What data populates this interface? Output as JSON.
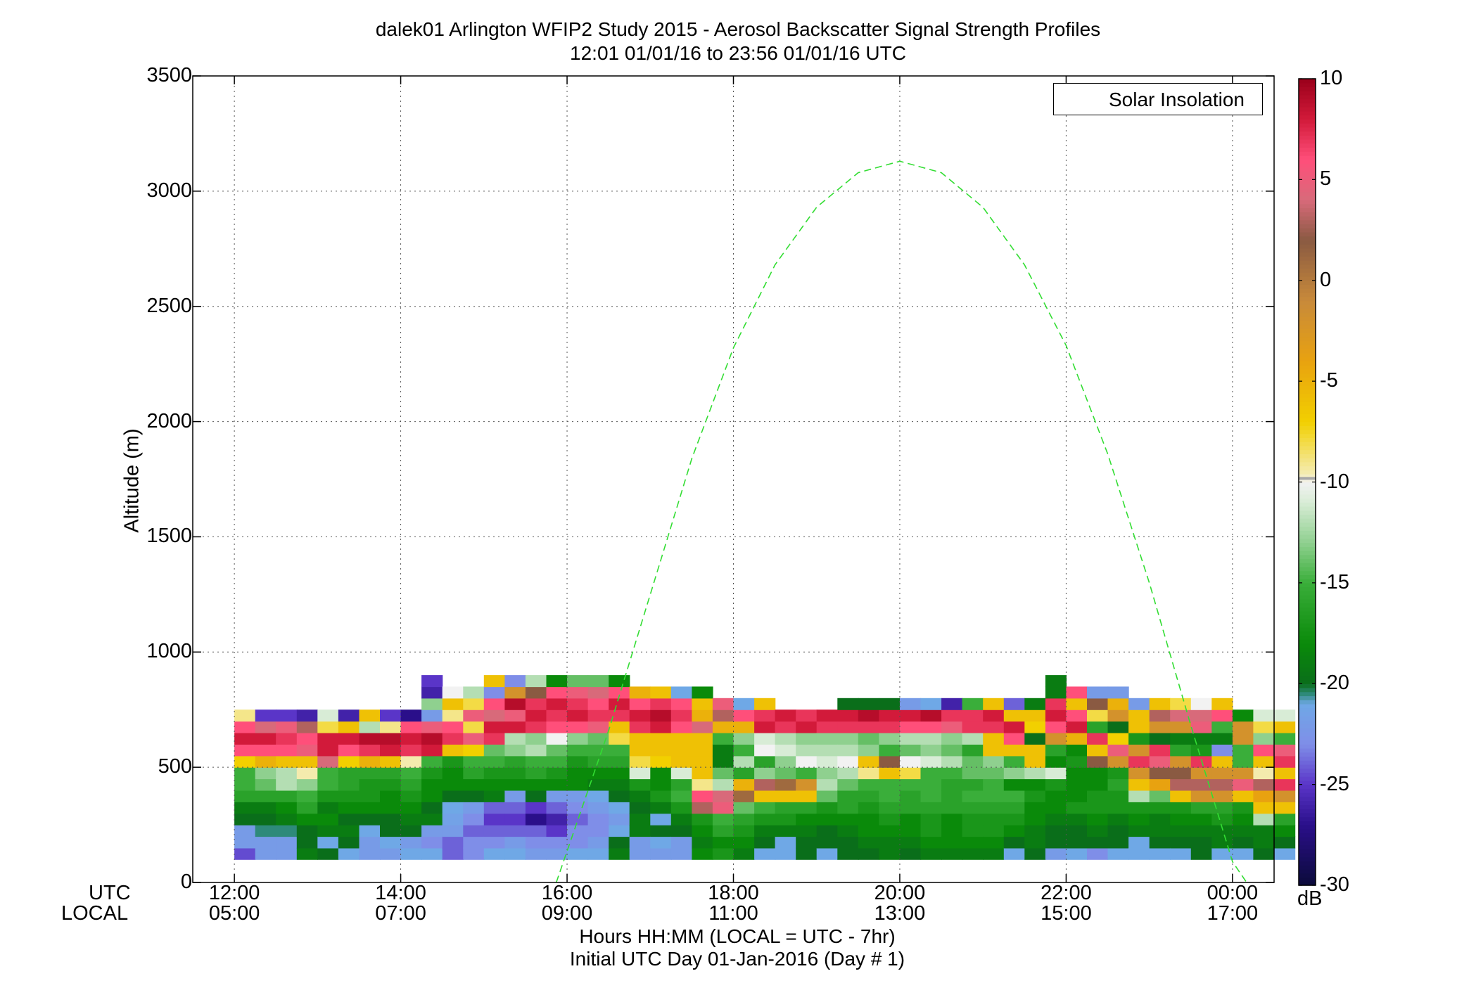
{
  "figure": {
    "title_line1": "dalek01 Arlington WFIP2 Study 2015 - Aerosol Backscatter Signal Strength Profiles",
    "title_line2": "12:01 01/01/16 to 23:56 01/01/16  UTC",
    "ylabel": "Altitude (m)",
    "xlabel_line1": "Hours HH:MM  (LOCAL = UTC - 7hr)",
    "xlabel_line2": "Initial UTC Day 01-Jan-2016 (Day # 1)",
    "row_label_utc": "UTC",
    "row_label_local": "LOCAL",
    "legend_label": "Solar Insolation",
    "colorbar_unit": "dB"
  },
  "chart_data": {
    "type": "heatmap",
    "x_unit": "hours UTC",
    "xlim": [
      11.5,
      24.5
    ],
    "ylim": [
      0,
      3500
    ],
    "grid": true,
    "legend_position": "top-right",
    "x_ticks_utc": [
      "12:00",
      "14:00",
      "16:00",
      "18:00",
      "20:00",
      "22:00",
      "00:00"
    ],
    "x_ticks_local": [
      "05:00",
      "07:00",
      "09:00",
      "11:00",
      "13:00",
      "15:00",
      "17:00"
    ],
    "x_tick_values": [
      12,
      14,
      16,
      18,
      20,
      22,
      24
    ],
    "y_ticks": [
      "0",
      "500",
      "1000",
      "1500",
      "2000",
      "2500",
      "3000",
      "3500"
    ],
    "y_tick_values": [
      0,
      500,
      1000,
      1500,
      2000,
      2500,
      3000,
      3500
    ],
    "colorbar": {
      "range": [
        -30,
        10
      ],
      "ticks": [
        "10",
        "5",
        "0",
        "-5",
        "-10",
        "-15",
        "-20",
        "-25",
        "-30"
      ],
      "tick_values": [
        10,
        5,
        0,
        -5,
        -10,
        -15,
        -20,
        -25,
        -30
      ],
      "colormap": [
        {
          "v": -30,
          "c": "#0b0b3a"
        },
        {
          "v": -27,
          "c": "#2a0f8a"
        },
        {
          "v": -25,
          "c": "#5a35c8"
        },
        {
          "v": -23,
          "c": "#7f8ee8"
        },
        {
          "v": -21,
          "c": "#6fa8e6"
        },
        {
          "v": -20.5,
          "c": "#2e8a7a"
        },
        {
          "v": -20,
          "c": "#0a6e1a"
        },
        {
          "v": -18,
          "c": "#0a8a0a"
        },
        {
          "v": -15,
          "c": "#3aae3a"
        },
        {
          "v": -13,
          "c": "#8fd08f"
        },
        {
          "v": -11,
          "c": "#d8ecd6"
        },
        {
          "v": -10,
          "c": "#f2f2f2"
        },
        {
          "v": -9.6,
          "c": "#f4ecb4"
        },
        {
          "v": -7,
          "c": "#f2d000"
        },
        {
          "v": -4,
          "c": "#e8a210"
        },
        {
          "v": -1,
          "c": "#c88a3a"
        },
        {
          "v": 2,
          "c": "#8a5a42"
        },
        {
          "v": 4,
          "c": "#d86a7a"
        },
        {
          "v": 6,
          "c": "#ff4f7a"
        },
        {
          "v": 8,
          "c": "#d21a3a"
        },
        {
          "v": 10,
          "c": "#9a001a"
        }
      ]
    },
    "heatmap": {
      "x_start": 12.0,
      "x_step": 0.25,
      "y_start": 100,
      "y_step": 50,
      "value_unit": "dB",
      "columns_dB_bottom_to_top": [
        [
          -24.5,
          -22.0,
          -22.0,
          -20.0,
          -19.0,
          -16.0,
          -15.0,
          -15.0,
          -7.0,
          6.0,
          8.0,
          6.0,
          -9.0
        ],
        [
          -22.0,
          -22.0,
          -20.5,
          -20.0,
          -19.0,
          -16.0,
          -14.0,
          -13.0,
          -5.0,
          6.0,
          8.0,
          4.0,
          -25.0
        ],
        [
          -22.0,
          -22.0,
          -20.5,
          -19.0,
          -18.0,
          -16.0,
          -12.0,
          -12.0,
          -6.0,
          6.0,
          7.0,
          5.0,
          -25.0
        ],
        [
          -19.0,
          -20.0,
          -20.0,
          -18.0,
          -16.0,
          -15.0,
          -13.0,
          -9.5,
          -6.0,
          5.0,
          6.0,
          3.0,
          -26.0
        ],
        [
          -20.0,
          -21.0,
          -19.0,
          -18.0,
          -19.0,
          -17.0,
          -15.0,
          -15.0,
          4.0,
          8.0,
          8.0,
          -8.0,
          -11.0
        ],
        [
          -21.0,
          -20.0,
          -19.0,
          -20.0,
          -18.0,
          -17.0,
          -16.0,
          -16.0,
          -7.0,
          6.0,
          8.0,
          -6.0,
          -26.0
        ],
        [
          -22.0,
          -22.0,
          -21.0,
          -20.0,
          -18.0,
          -17.0,
          -17.0,
          -16.0,
          -5.0,
          7.0,
          9.0,
          -12.0,
          -6.0
        ],
        [
          -22.0,
          -21.0,
          -20.0,
          -20.0,
          -18.0,
          -18.0,
          -17.0,
          -16.0,
          -6.0,
          8.0,
          9.0,
          -9.0,
          -25.0
        ],
        [
          -21.0,
          -22.0,
          -20.0,
          -19.0,
          -18.0,
          -17.0,
          -16.0,
          -15.0,
          -9.5,
          7.0,
          8.0,
          6.0,
          -27.0
        ],
        [
          -21.0,
          -23.0,
          -22.0,
          -19.0,
          -20.0,
          -18.0,
          -18.0,
          -17.0,
          -15.0,
          8.0,
          9.0,
          5.0,
          -22.0,
          -13.0,
          -26.0,
          -25.0
        ],
        [
          -24.0,
          -24.0,
          -22.0,
          -21.5,
          -21.0,
          -20.0,
          -18.0,
          -18.0,
          -17.0,
          -6.0,
          7.0,
          6.0,
          -9.0,
          -6.0,
          -10.0
        ],
        [
          -23.0,
          -23.0,
          -24.0,
          -23.0,
          -22.0,
          -20.0,
          -18.0,
          -16.0,
          -15.0,
          -7.0,
          5.0,
          -8.0,
          5.0,
          -8.0,
          -12.0
        ],
        [
          -21.0,
          -23.0,
          -24.0,
          -25.0,
          -24.0,
          -19.0,
          -18.0,
          -17.0,
          -15.0,
          -14.0,
          7.0,
          8.0,
          4.0,
          6.0,
          -23.0,
          -6.0
        ],
        [
          -21.0,
          -22.0,
          -24.0,
          -25.0,
          -24.0,
          -22.0,
          -18.0,
          -17.0,
          -16.0,
          -13.0,
          -12.0,
          8.0,
          5.0,
          9.0,
          -2.0,
          -23.0
        ],
        [
          -22.0,
          -23.0,
          -24.0,
          -27.0,
          -25.0,
          -20.0,
          -18.0,
          -16.0,
          -15.0,
          -12.0,
          -13.0,
          7.0,
          8.0,
          7.0,
          2.0,
          -12.0
        ],
        [
          -22.0,
          -23.0,
          -25.0,
          -26.0,
          -24.0,
          -22.0,
          -18.0,
          -17.0,
          -15.0,
          -14.0,
          -10.0,
          6.0,
          7.0,
          8.0,
          6.0,
          -18.0
        ],
        [
          -21.0,
          -23.0,
          -23.0,
          -24.0,
          -23.0,
          -22.0,
          -18.0,
          -18.0,
          -17.0,
          -15.0,
          -13.0,
          6.0,
          8.0,
          7.0,
          5.0,
          -14.0
        ],
        [
          -21.0,
          -22.0,
          -23.0,
          -23.0,
          -22.0,
          -21.0,
          -19.0,
          -18.0,
          -16.0,
          -15.0,
          -14.0,
          5.0,
          7.0,
          6.0,
          4.0,
          -14.0
        ],
        [
          -19.0,
          -20.0,
          -21.0,
          -22.0,
          -21.0,
          -20.0,
          -19.0,
          -18.0,
          -16.0,
          -15.0,
          -8.0,
          -6.0,
          7.0,
          8.0,
          6.0,
          -18.0
        ],
        [
          -22.0,
          -22.0,
          -19.0,
          -19.0,
          -20.0,
          -19.0,
          -17.0,
          -11.0,
          -8.0,
          -6.0,
          -6.0,
          7.0,
          8.0,
          6.0,
          -5.0
        ],
        [
          -22.0,
          -21.0,
          -20.0,
          -21.0,
          -19.0,
          -17.0,
          -18.0,
          -18.0,
          -7.0,
          -6.0,
          -6.0,
          8.0,
          9.0,
          7.0,
          -6.0
        ],
        [
          -22.0,
          -22.0,
          -20.0,
          -19.0,
          -17.0,
          -15.0,
          -16.0,
          -11.0,
          -6.0,
          -6.0,
          -6.0,
          6.0,
          7.0,
          6.0,
          -21.0
        ],
        [
          -18.0,
          -19.0,
          -18.0,
          -17.0,
          3.0,
          6.0,
          -9.0,
          -6.0,
          -6.0,
          -6.0,
          -6.0,
          4.0,
          -5.0,
          -6.0,
          -18.0
        ],
        [
          -17.0,
          -18.0,
          -16.0,
          -15.0,
          5.0,
          4.0,
          -12.0,
          -14.0,
          -19.0,
          -19.0,
          -15.0,
          -5.0,
          3.0,
          5.0
        ],
        [
          -19.0,
          -18.0,
          -17.0,
          -16.0,
          -14.0,
          1.0,
          -5.0,
          -16.0,
          -12.0,
          -15.0,
          -13.0,
          -5.0,
          6.0,
          -21.0
        ],
        [
          -21.0,
          -20.0,
          -19.0,
          -17.0,
          -15.0,
          -6.0,
          3.0,
          -13.0,
          -16.0,
          -10.0,
          -11.0,
          8.0,
          7.0,
          -6.0
        ],
        [
          -21.0,
          -21.0,
          -19.0,
          -17.0,
          -16.0,
          -6.0,
          1.0,
          -14.0,
          -13.0,
          -11.0,
          -12.0,
          7.0,
          8.0
        ],
        [
          -20.0,
          -20.0,
          -19.0,
          -18.0,
          -16.0,
          -6.0,
          -2.0,
          -15.0,
          -10.0,
          -12.0,
          -13.0,
          8.0,
          7.0
        ],
        [
          -21.0,
          -20.0,
          -20.0,
          -18.0,
          -17.0,
          -14.0,
          -12.0,
          -13.0,
          -11.0,
          -12.0,
          -13.0,
          7.0,
          8.0
        ],
        [
          -20.0,
          -20.0,
          -19.0,
          -18.0,
          -16.0,
          -16.0,
          -14.0,
          -12.0,
          -10.0,
          -12.0,
          -13.0,
          7.0,
          8.0,
          -20.0
        ],
        [
          -20.0,
          -19.0,
          -18.0,
          -18.0,
          -17.0,
          -16.0,
          -15.0,
          -9.0,
          -6.0,
          -13.0,
          -14.0,
          7.0,
          9.0,
          -20.0
        ],
        [
          -19.0,
          -19.0,
          -18.0,
          -17.0,
          -16.0,
          -15.0,
          -15.0,
          -6.0,
          2.0,
          -15.0,
          -13.0,
          7.0,
          8.0,
          -20.0
        ],
        [
          -20.0,
          -19.0,
          -18.0,
          -18.0,
          -16.0,
          -16.0,
          -15.0,
          -8.0,
          -10.0,
          -14.0,
          -12.0,
          6.0,
          8.0,
          -22.0
        ],
        [
          -19.0,
          -18.0,
          -17.0,
          -17.0,
          -16.0,
          -15.0,
          -15.0,
          -15.0,
          -11.0,
          -13.0,
          -12.0,
          6.0,
          9.0,
          -21.0
        ],
        [
          -19.0,
          -18.0,
          -18.0,
          -18.0,
          -16.0,
          -16.0,
          -16.0,
          -15.0,
          -12.0,
          -14.0,
          -13.0,
          5.0,
          7.0,
          -26.0
        ],
        [
          -19.0,
          -18.0,
          -17.0,
          -17.0,
          -16.0,
          -15.0,
          -16.0,
          -14.0,
          -14.0,
          -16.0,
          -12.0,
          7.0,
          7.0,
          -15.0
        ],
        [
          -19.0,
          -18.0,
          -17.0,
          -17.0,
          -16.0,
          -15.0,
          -15.0,
          -14.0,
          -13.0,
          -6.0,
          -6.0,
          7.0,
          8.0,
          -6.0
        ],
        [
          -21.0,
          -20.0,
          -18.0,
          -17.0,
          -16.0,
          -15.0,
          -18.0,
          -13.0,
          -15.0,
          -6.0,
          6.0,
          8.0,
          -6.0,
          -24.0
        ],
        [
          -20.0,
          -19.0,
          -19.0,
          -18.0,
          -18.0,
          -17.0,
          -18.0,
          -12.0,
          -6.0,
          -6.0,
          -20.0,
          -7.0,
          -6.0,
          -19.0
        ],
        [
          -22.0,
          -20.0,
          -20.0,
          -19.0,
          -18.0,
          -18.0,
          -17.0,
          -11.0,
          -18.0,
          -16.0,
          -2.0,
          6.0,
          8.0,
          7.0,
          -19.0,
          -19.0
        ],
        [
          -21.0,
          -20.0,
          -20.0,
          -19.0,
          -17.0,
          -18.0,
          -18.0,
          -18.0,
          -17.0,
          -18.0,
          -5.0,
          8.0,
          6.0,
          -6.0,
          6.0
        ],
        [
          -23.0,
          -20.0,
          -19.0,
          -18.0,
          -17.0,
          -17.0,
          -18.0,
          -18.0,
          2.0,
          -6.0,
          7.0,
          -16.0,
          -8.0,
          2.0,
          -22.0
        ],
        [
          -21.0,
          -20.0,
          -20.0,
          -19.0,
          -17.0,
          -17.0,
          -16.0,
          -17.0,
          -2.0,
          5.0,
          -7.0,
          -20.0,
          -2.0,
          -5.0,
          -22.0
        ],
        [
          -21.0,
          -21.0,
          -19.0,
          -18.0,
          -17.0,
          -12.0,
          -6.0,
          -2.0,
          7.0,
          -2.0,
          -17.0,
          -6.0,
          -6.0,
          -22.0
        ],
        [
          -21.0,
          -20.0,
          -19.0,
          -19.0,
          -17.0,
          -14.0,
          -4.0,
          2.0,
          5.0,
          7.0,
          -20.0,
          -2.0,
          3.0,
          -6.0
        ],
        [
          -21.0,
          -20.0,
          -19.0,
          -18.0,
          -17.0,
          -6.0,
          3.0,
          2.0,
          -2.0,
          -16.0,
          -19.0,
          -2.0,
          4.0,
          -8.0
        ],
        [
          -20.0,
          -20.0,
          -19.0,
          -18.0,
          -16.0,
          -2.0,
          3.0,
          -2.0,
          7.0,
          -17.0,
          -19.0,
          5.0,
          4.0,
          -10.0
        ],
        [
          -21.0,
          -19.0,
          -19.0,
          -17.0,
          -16.0,
          -2.0,
          3.0,
          -2.0,
          -6.0,
          -23.0,
          -19.0,
          -15.0,
          6.0,
          -6.0
        ],
        [
          -21.0,
          -20.0,
          -19.0,
          -18.0,
          -17.0,
          -6.0,
          5.0,
          -2.0,
          -15.0,
          -15.0,
          -2.0,
          -2.0,
          -18.0
        ],
        [
          -20.0,
          -19.0,
          -19.0,
          -12.0,
          -6.0,
          -4.0,
          3.0,
          -9.5,
          -6.0,
          6.0,
          -13.0,
          -8.0,
          -11.0
        ],
        [
          -21.0,
          -20.0,
          -18.0,
          -16.0,
          -6.0,
          -2.0,
          7.0,
          -6.0,
          7.0,
          5.0,
          -15.0,
          -6.0,
          -11.0
        ]
      ]
    },
    "series": [
      {
        "name": "Solar Insolation",
        "style": "dashed",
        "color": "#33dd33",
        "x": [
          15.87,
          16.5,
          17.0,
          17.5,
          18.0,
          18.5,
          19.0,
          19.5,
          20.0,
          20.5,
          21.0,
          21.5,
          22.0,
          22.5,
          23.0,
          23.5,
          24.0,
          24.17
        ],
        "y": [
          0,
          660,
          1250,
          1840,
          2320,
          2680,
          2930,
          3080,
          3130,
          3080,
          2930,
          2680,
          2330,
          1860,
          1300,
          680,
          90,
          0
        ]
      }
    ]
  }
}
